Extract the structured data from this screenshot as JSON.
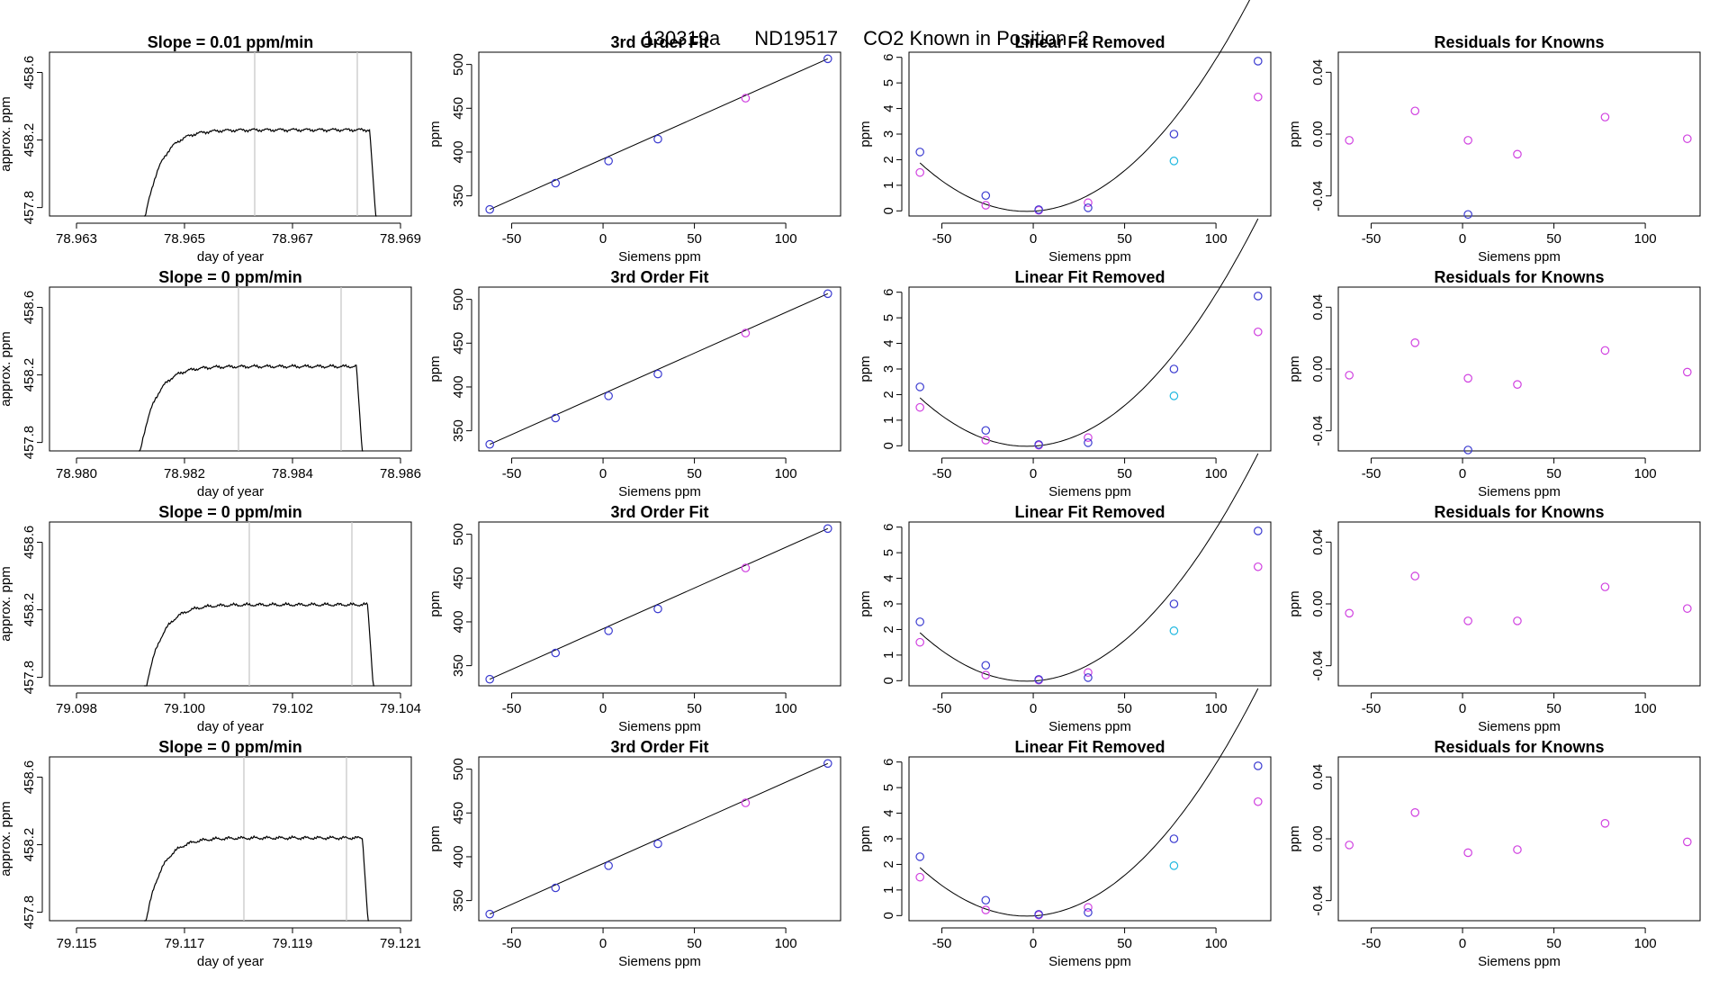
{
  "suptitle": {
    "id": "130319a",
    "instrument": "ND19517",
    "description": "CO2 Known in Position  2"
  },
  "colors": {
    "line": "#000000",
    "grid": "#c8c8c8",
    "standard": "#3a3ad0",
    "reference": "#d040e0",
    "target": "#20b8e0"
  },
  "chart_data": [
    {
      "panel": "timeseries",
      "row": 1,
      "type": "line",
      "title": "Slope =  0.01  ppm/min",
      "xlabel": "day of year",
      "ylabel": "approx. ppm",
      "xlim": [
        78.9625,
        78.9692
      ],
      "ylim": [
        457.75,
        458.72
      ],
      "xticks": [
        "78.963",
        "78.965",
        "78.967",
        "78.969"
      ],
      "yticks": [
        "457.8",
        "458.2",
        "458.6"
      ],
      "vlines": [
        78.9663,
        78.9682
      ],
      "start": 78.96425,
      "end": 78.96856,
      "plateau": 458.26
    },
    {
      "panel": "timeseries",
      "row": 2,
      "type": "line",
      "title": "Slope =  0  ppm/min",
      "xlabel": "day of year",
      "ylabel": "approx. ppm",
      "xlim": [
        78.9795,
        78.9862
      ],
      "ylim": [
        457.75,
        458.72
      ],
      "xticks": [
        "78.980",
        "78.982",
        "78.984",
        "78.986"
      ],
      "yticks": [
        "457.8",
        "458.2",
        "458.6"
      ],
      "vlines": [
        78.983,
        78.9849
      ],
      "start": 78.98115,
      "end": 78.98531,
      "plateau": 458.25
    },
    {
      "panel": "timeseries",
      "row": 3,
      "type": "line",
      "title": "Slope =  0  ppm/min",
      "xlabel": "day of year",
      "ylabel": "approx. ppm",
      "xlim": [
        79.0975,
        79.1042
      ],
      "ylim": [
        457.75,
        458.72
      ],
      "xticks": [
        "79.098",
        "79.100",
        "79.102",
        "79.104"
      ],
      "yticks": [
        "457.8",
        "458.2",
        "458.6"
      ],
      "vlines": [
        79.1012,
        79.1031
      ],
      "start": 79.09925,
      "end": 79.10352,
      "plateau": 458.23
    },
    {
      "panel": "timeseries",
      "row": 4,
      "type": "line",
      "title": "Slope =  0  ppm/min",
      "xlabel": "day of year",
      "ylabel": "approx. ppm",
      "xlim": [
        79.1145,
        79.1212
      ],
      "ylim": [
        457.75,
        458.72
      ],
      "xticks": [
        "79.115",
        "79.117",
        "79.119",
        "79.121"
      ],
      "yticks": [
        "457.8",
        "458.2",
        "458.6"
      ],
      "vlines": [
        79.1181,
        79.12
      ],
      "start": 79.11625,
      "end": 79.12042,
      "plateau": 458.24
    },
    {
      "panel": "fit",
      "type": "scatter+line",
      "title": "3rd Order Fit",
      "xlabel": "Siemens ppm",
      "ylabel": "ppm",
      "xlim": [
        -68,
        130
      ],
      "ylim": [
        327,
        514
      ],
      "xticks": [
        -50,
        0,
        50,
        100
      ],
      "yticks": [
        350,
        400,
        450,
        500
      ],
      "fit_line": [
        [
          -62,
          334.5
        ],
        [
          123,
          506.5
        ]
      ],
      "standards": [
        [
          -62,
          334.5
        ],
        [
          -26,
          364.5
        ],
        [
          3,
          389.8
        ],
        [
          30,
          414.8
        ],
        [
          123,
          506.5
        ]
      ],
      "references": [
        [
          78,
          461.5
        ]
      ]
    },
    {
      "panel": "linear_removed",
      "type": "scatter+line",
      "title": "Linear Fit Removed",
      "xlabel": "Siemens ppm",
      "ylabel": "ppm",
      "xlim": [
        -68,
        130
      ],
      "ylim": [
        -0.2,
        6.2
      ],
      "xticks": [
        -50,
        0,
        50,
        100
      ],
      "yticks": [
        0,
        1,
        2,
        3,
        4,
        5,
        6
      ],
      "curve": {
        "a": 0.000555,
        "b": 0.00398,
        "c": -0.0125,
        "from": -62,
        "to": 123
      },
      "standards": [
        [
          -62,
          2.3
        ],
        [
          -26,
          0.6
        ],
        [
          3,
          0.05
        ],
        [
          30,
          0.12
        ],
        [
          77,
          3.0
        ],
        [
          123,
          5.85
        ]
      ],
      "references": [
        [
          -62,
          1.5
        ],
        [
          -26,
          0.22
        ],
        [
          3,
          0.02
        ],
        [
          30,
          0.32
        ],
        [
          123,
          4.45
        ]
      ],
      "targets": [
        [
          77,
          1.95
        ]
      ]
    },
    {
      "panel": "residuals",
      "type": "scatter",
      "title": "Residuals for Knowns",
      "xlabel": "Siemens ppm",
      "ylabel": "ppm",
      "xlim": [
        -68,
        130
      ],
      "ylim": [
        -0.053,
        0.053
      ],
      "xticks": [
        -50,
        0,
        50,
        100
      ],
      "yticks": [
        "-0.04",
        "0.00",
        "0.04"
      ],
      "rows": [
        {
          "reference": [
            [
              -62,
              -0.004
            ],
            [
              -26,
              0.015
            ],
            [
              3,
              -0.004
            ],
            [
              30,
              -0.013
            ],
            [
              78,
              0.011
            ],
            [
              123,
              -0.003
            ]
          ],
          "standard": [
            [
              3,
              -0.052
            ]
          ]
        },
        {
          "reference": [
            [
              -62,
              -0.004
            ],
            [
              -26,
              0.017
            ],
            [
              3,
              -0.006
            ],
            [
              30,
              -0.01
            ],
            [
              78,
              0.012
            ],
            [
              123,
              -0.002
            ]
          ],
          "standard": [
            [
              3,
              -0.054
            ]
          ]
        },
        {
          "reference": [
            [
              -62,
              -0.006
            ],
            [
              -26,
              0.018
            ],
            [
              3,
              -0.011
            ],
            [
              30,
              -0.011
            ],
            [
              78,
              0.011
            ],
            [
              123,
              -0.003
            ]
          ],
          "standard": []
        },
        {
          "reference": [
            [
              -62,
              -0.004
            ],
            [
              -26,
              0.017
            ],
            [
              3,
              -0.009
            ],
            [
              30,
              -0.007
            ],
            [
              78,
              0.01
            ],
            [
              123,
              -0.002
            ]
          ],
          "standard": []
        }
      ]
    }
  ]
}
